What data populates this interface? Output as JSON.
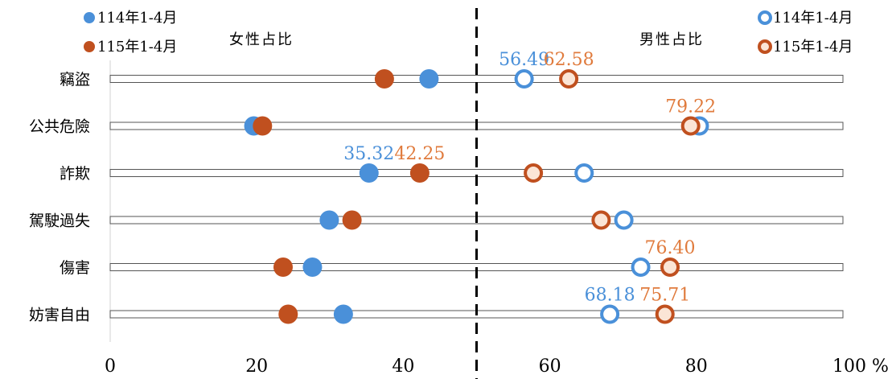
{
  "chart_data": {
    "type": "scatter",
    "xlim": [
      0,
      100
    ],
    "x_ticks": [
      "0",
      "20",
      "40",
      "60",
      "80",
      "100 %"
    ],
    "categories": [
      "竊盜",
      "公共危險",
      "詐欺",
      "駕駛過失",
      "傷害",
      "妨害自由"
    ],
    "side_labels": {
      "female": "女性占比",
      "male": "男性占比"
    },
    "series": [
      {
        "name": "114年1-4月",
        "side": "female",
        "marker": "filled",
        "color": "#4a90d9",
        "values": [
          43.51,
          19.6,
          35.32,
          29.9,
          27.6,
          31.82
        ]
      },
      {
        "name": "115年1-4月",
        "side": "female",
        "marker": "filled",
        "color": "#c0501f",
        "values": [
          37.42,
          20.78,
          42.25,
          33.0,
          23.6,
          24.29
        ]
      },
      {
        "name": "114年1-4月",
        "side": "male",
        "marker": "hollow",
        "color": "#4a90d9",
        "values": [
          56.49,
          80.4,
          64.68,
          70.1,
          72.4,
          68.18
        ]
      },
      {
        "name": "115年1-4月",
        "side": "male",
        "marker": "hollow",
        "color": "#c0501f",
        "values": [
          62.58,
          79.22,
          57.75,
          67.0,
          76.4,
          75.71
        ]
      }
    ],
    "data_labels": [
      {
        "category": "竊盜",
        "series": 2,
        "text": "56.49",
        "color": "#4a90d9"
      },
      {
        "category": "竊盜",
        "series": 3,
        "text": "62.58",
        "color": "#e07b3d"
      },
      {
        "category": "公共危險",
        "series": 3,
        "text": "79.22",
        "color": "#e07b3d"
      },
      {
        "category": "詐欺",
        "series": 0,
        "text": "35.32",
        "color": "#4a90d9"
      },
      {
        "category": "詐欺",
        "series": 1,
        "text": "42.25",
        "color": "#e07b3d"
      },
      {
        "category": "傷害",
        "series": 3,
        "text": "76.40",
        "color": "#e07b3d"
      },
      {
        "category": "妨害自由",
        "series": 2,
        "text": "68.18",
        "color": "#4a90d9"
      },
      {
        "category": "妨害自由",
        "series": 3,
        "text": "75.71",
        "color": "#e07b3d"
      }
    ],
    "divider_at": 50,
    "grid": false
  }
}
